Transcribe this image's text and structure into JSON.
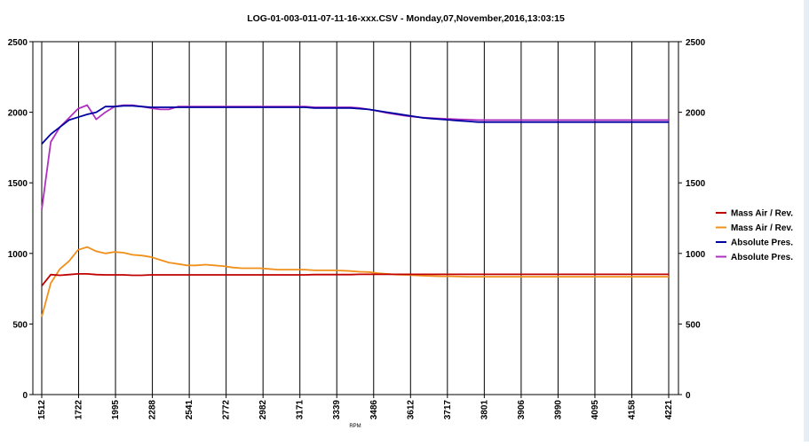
{
  "chart_data": {
    "type": "line",
    "title": "LOG-01-003-011-07-11-16-xxx.CSV - Monday,07,November,2016,13:03:15",
    "xlabel": "RPM",
    "ylabel": "",
    "ylim": [
      0,
      2500
    ],
    "y_ticks": [
      0,
      500,
      1000,
      1500,
      2000,
      2500
    ],
    "y_ticks_right": [
      0,
      500,
      1000,
      1500,
      2000,
      2500
    ],
    "x_tick_labels": [
      "1512",
      "1722",
      "1995",
      "2288",
      "2541",
      "2772",
      "2982",
      "3171",
      "3339",
      "3486",
      "3612",
      "3717",
      "3801",
      "3906",
      "3990",
      "4095",
      "4158",
      "4221"
    ],
    "grid": "vertical lines at ticks",
    "legend_position": "right",
    "series": [
      {
        "name": "Mass Air / Rev.",
        "color": "#c00000",
        "values": [
          770,
          850,
          845,
          850,
          855,
          855,
          850,
          848,
          848,
          848,
          845,
          845,
          848,
          848,
          848,
          848,
          848,
          848,
          848,
          848,
          848,
          848,
          848,
          848,
          848,
          848,
          848,
          848,
          848,
          848,
          850,
          850,
          850,
          850,
          850,
          852,
          852,
          852,
          852,
          852,
          852,
          852,
          852,
          852,
          852,
          852,
          852,
          852,
          852,
          852,
          852,
          852,
          852,
          852,
          852,
          852,
          852,
          852,
          852,
          852,
          852,
          852,
          852,
          852,
          852,
          852,
          852,
          852,
          852,
          852
        ]
      },
      {
        "name": "Mass Air / Rev.",
        "color": "#f0901a",
        "values": [
          550,
          790,
          890,
          945,
          1025,
          1045,
          1015,
          1000,
          1010,
          1005,
          990,
          985,
          975,
          955,
          935,
          925,
          915,
          915,
          920,
          915,
          910,
          900,
          895,
          895,
          895,
          890,
          885,
          885,
          885,
          885,
          880,
          880,
          880,
          878,
          875,
          870,
          868,
          860,
          855,
          850,
          848,
          845,
          842,
          840,
          838,
          838,
          836,
          835,
          835,
          835,
          835,
          835,
          835,
          835,
          835,
          835,
          835,
          835,
          835,
          835,
          835,
          835,
          835,
          835,
          835,
          835,
          835,
          835,
          835,
          835
        ]
      },
      {
        "name": "Absolute Pres.",
        "color": "#0000a0",
        "values": [
          1775,
          1845,
          1895,
          1945,
          1965,
          1985,
          2000,
          2040,
          2040,
          2045,
          2045,
          2040,
          2035,
          2035,
          2035,
          2035,
          2035,
          2035,
          2035,
          2035,
          2035,
          2035,
          2035,
          2035,
          2035,
          2035,
          2035,
          2035,
          2035,
          2035,
          2030,
          2030,
          2030,
          2030,
          2030,
          2025,
          2020,
          2010,
          2000,
          1990,
          1980,
          1970,
          1960,
          1955,
          1950,
          1945,
          1940,
          1935,
          1930,
          1930,
          1930,
          1930,
          1930,
          1930,
          1930,
          1930,
          1930,
          1930,
          1930,
          1930,
          1930,
          1930,
          1930,
          1930,
          1930,
          1930,
          1930,
          1930,
          1930,
          1930
        ]
      },
      {
        "name": "Absolute Pres.",
        "color": "#b030c0",
        "values": [
          1310,
          1790,
          1895,
          1960,
          2025,
          2050,
          1950,
          2000,
          2040,
          2050,
          2050,
          2040,
          2030,
          2020,
          2020,
          2040,
          2040,
          2040,
          2040,
          2040,
          2040,
          2040,
          2040,
          2040,
          2040,
          2040,
          2040,
          2040,
          2040,
          2040,
          2035,
          2035,
          2035,
          2035,
          2035,
          2030,
          2020,
          2008,
          1995,
          1985,
          1975,
          1968,
          1962,
          1958,
          1955,
          1952,
          1950,
          1948,
          1945,
          1945,
          1945,
          1945,
          1945,
          1945,
          1945,
          1945,
          1945,
          1945,
          1945,
          1945,
          1945,
          1945,
          1945,
          1945,
          1945,
          1945,
          1945,
          1945,
          1945,
          1945
        ]
      }
    ]
  }
}
